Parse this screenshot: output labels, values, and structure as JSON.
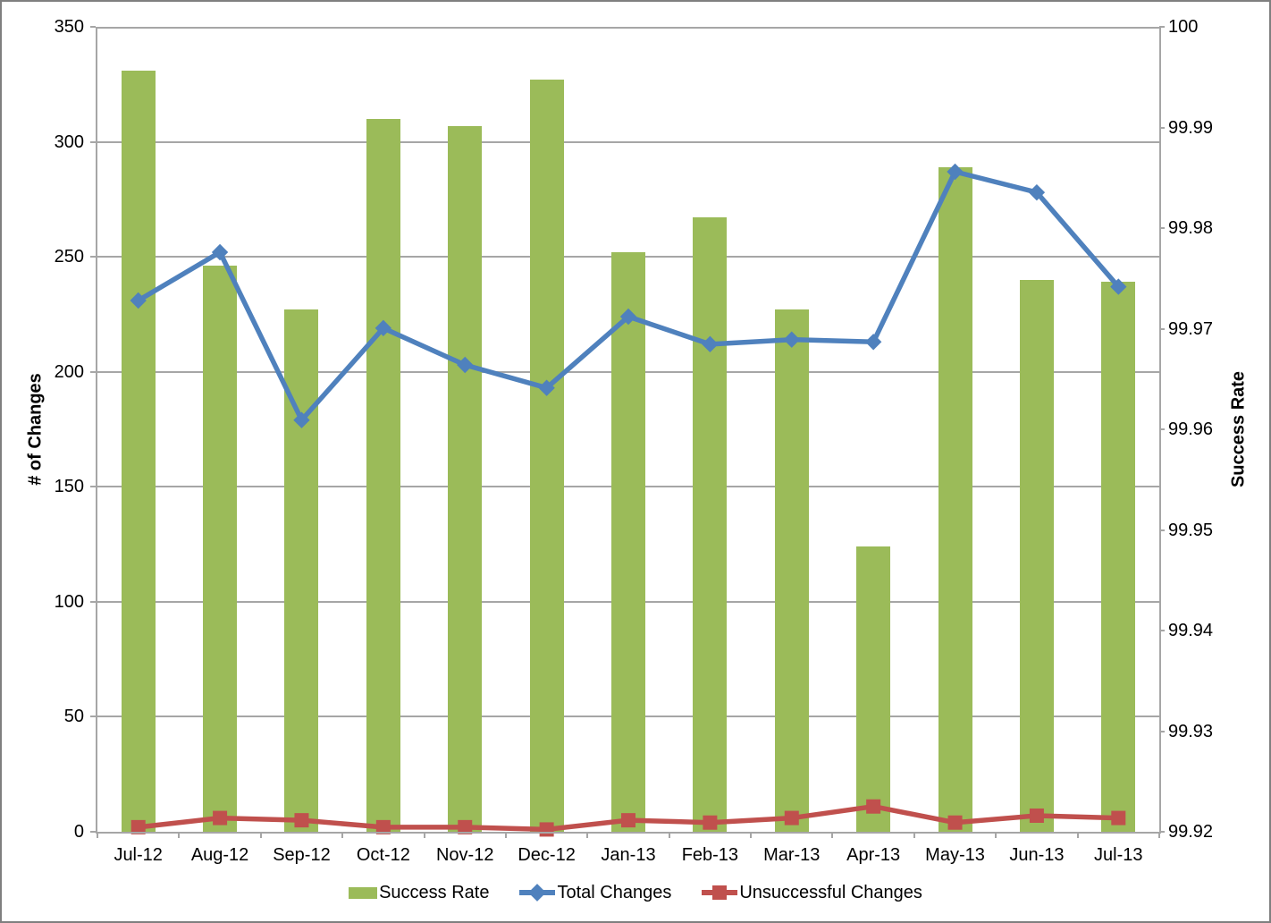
{
  "chart_data": {
    "type": "bar",
    "subtype": "combo-bar-line",
    "categories": [
      "Jul-12",
      "Aug-12",
      "Sep-12",
      "Oct-12",
      "Nov-12",
      "Dec-12",
      "Jan-13",
      "Feb-13",
      "Mar-13",
      "Apr-13",
      "May-13",
      "Jun-13",
      "Jul-13"
    ],
    "series": [
      {
        "name": "Success Rate",
        "type": "bar",
        "color": "#9BBB59",
        "marker": "none",
        "values": [
          331,
          246,
          227,
          310,
          307,
          327,
          252,
          267,
          227,
          124,
          289,
          240,
          239
        ]
      },
      {
        "name": "Total Changes",
        "type": "line",
        "color": "#4F81BD",
        "marker": "diamond",
        "values": [
          231,
          252,
          179,
          219,
          203,
          193,
          224,
          212,
          214,
          213,
          287,
          278,
          237
        ]
      },
      {
        "name": "Unsuccessful Changes",
        "type": "line",
        "color": "#C0504D",
        "marker": "square",
        "values": [
          2,
          6,
          5,
          2,
          2,
          1,
          5,
          4,
          6,
          11,
          4,
          7,
          6
        ]
      }
    ],
    "left_axis": {
      "title": "# of Changes",
      "min": 0,
      "max": 350,
      "step": 50,
      "tick_labels": [
        "350",
        "300",
        "250",
        "200",
        "150",
        "100",
        "50",
        "0"
      ]
    },
    "right_axis": {
      "title": "Success Rate",
      "min": 99.92,
      "max": 100,
      "step": 0.01,
      "tick_labels": [
        "100",
        "99.99",
        "99.98",
        "99.97",
        "99.96",
        "99.95",
        "99.94",
        "99.93",
        "99.92"
      ]
    },
    "grid": true,
    "grid_color": "#A6A6A6",
    "axis_color": "#A6A6A6",
    "legend_position": "bottom",
    "title": ""
  }
}
